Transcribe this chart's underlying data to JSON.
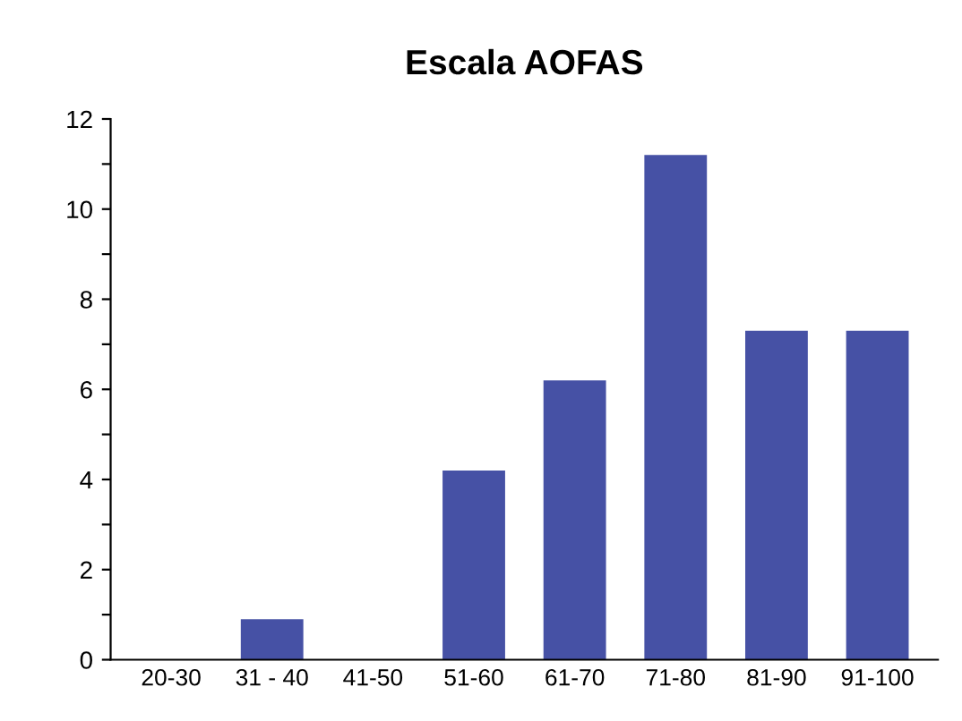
{
  "chart_data": {
    "type": "bar",
    "title": "Escala AOFAS",
    "categories": [
      "20-30",
      "31 - 40",
      "41-50",
      "51-60",
      "61-70",
      "71-80",
      "81-90",
      "91-100"
    ],
    "values": [
      0,
      0.9,
      0,
      4.2,
      6.2,
      11.2,
      7.3,
      7.3
    ],
    "color": "#4651a5",
    "ylim": [
      0,
      12
    ],
    "yticks": [
      0,
      {
        "value": 1,
        "label": null
      },
      2,
      {
        "value": 3,
        "label": null
      },
      4,
      {
        "value": 5,
        "label": null
      },
      6,
      {
        "value": 7,
        "label": null
      },
      8,
      {
        "value": 9,
        "label": null
      },
      10,
      {
        "value": 11,
        "label": null
      },
      12
    ],
    "grid": false
  }
}
